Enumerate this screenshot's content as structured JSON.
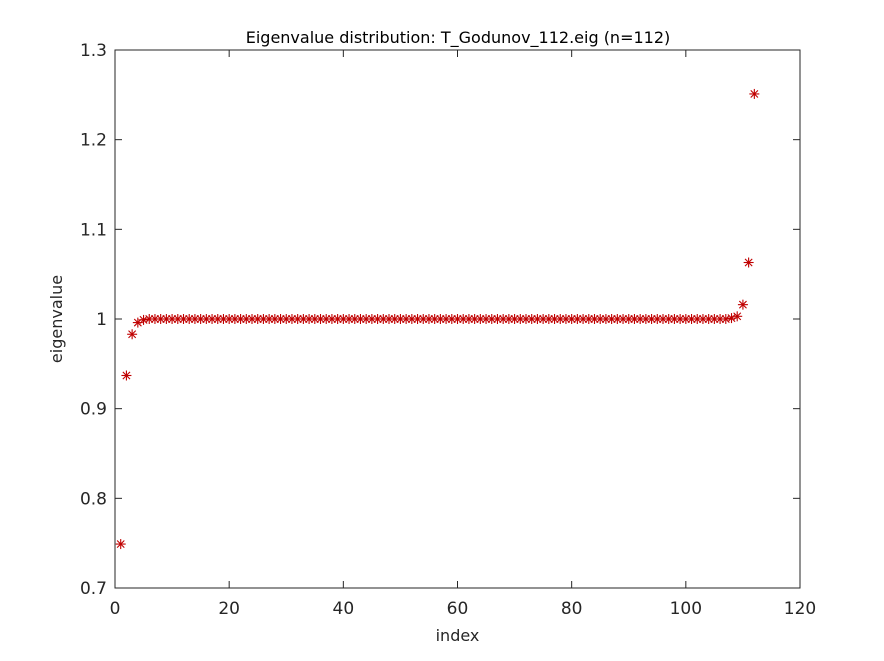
{
  "chart_data": {
    "type": "scatter",
    "title": "Eigenvalue distribution: T_Godunov_112.eig (n=112)",
    "xlabel": "index",
    "ylabel": "eigenvalue",
    "xlim": [
      0,
      120
    ],
    "ylim": [
      0.7,
      1.3
    ],
    "xticks": [
      0,
      20,
      40,
      60,
      80,
      100,
      120
    ],
    "xtick_labels": [
      "0",
      "20",
      "40",
      "60",
      "80",
      "100",
      "120"
    ],
    "yticks": [
      0.7,
      0.8,
      0.9,
      1.0,
      1.1,
      1.2,
      1.3
    ],
    "ytick_labels": [
      "0.7",
      "0.8",
      "0.9",
      "1",
      "1.1",
      "1.2",
      "1.3"
    ],
    "grid": false,
    "marker": "asterisk",
    "marker_color": "#c00000",
    "series": [
      {
        "x": [
          1,
          2,
          3,
          4,
          5,
          6,
          7,
          8,
          9,
          10,
          11,
          12,
          13,
          14,
          15,
          16,
          17,
          18,
          19,
          20,
          21,
          22,
          23,
          24,
          25,
          26,
          27,
          28,
          29,
          30,
          31,
          32,
          33,
          34,
          35,
          36,
          37,
          38,
          39,
          40,
          41,
          42,
          43,
          44,
          45,
          46,
          47,
          48,
          49,
          50,
          51,
          52,
          53,
          54,
          55,
          56,
          57,
          58,
          59,
          60,
          61,
          62,
          63,
          64,
          65,
          66,
          67,
          68,
          69,
          70,
          71,
          72,
          73,
          74,
          75,
          76,
          77,
          78,
          79,
          80,
          81,
          82,
          83,
          84,
          85,
          86,
          87,
          88,
          89,
          90,
          91,
          92,
          93,
          94,
          95,
          96,
          97,
          98,
          99,
          100,
          101,
          102,
          103,
          104,
          105,
          106,
          107,
          108,
          109,
          110,
          111,
          112
        ],
        "y": [
          0.749,
          0.937,
          0.983,
          0.996,
          0.999,
          1,
          1,
          1,
          1,
          1,
          1,
          1,
          1,
          1,
          1,
          1,
          1,
          1,
          1,
          1,
          1,
          1,
          1,
          1,
          1,
          1,
          1,
          1,
          1,
          1,
          1,
          1,
          1,
          1,
          1,
          1,
          1,
          1,
          1,
          1,
          1,
          1,
          1,
          1,
          1,
          1,
          1,
          1,
          1,
          1,
          1,
          1,
          1,
          1,
          1,
          1,
          1,
          1,
          1,
          1,
          1,
          1,
          1,
          1,
          1,
          1,
          1,
          1,
          1,
          1,
          1,
          1,
          1,
          1,
          1,
          1,
          1,
          1,
          1,
          1,
          1,
          1,
          1,
          1,
          1,
          1,
          1,
          1,
          1,
          1,
          1,
          1,
          1,
          1,
          1,
          1,
          1,
          1,
          1,
          1,
          1,
          1,
          1,
          1,
          1,
          1,
          1,
          1.001,
          1.003,
          1.016,
          1.063,
          1.251
        ]
      }
    ]
  }
}
